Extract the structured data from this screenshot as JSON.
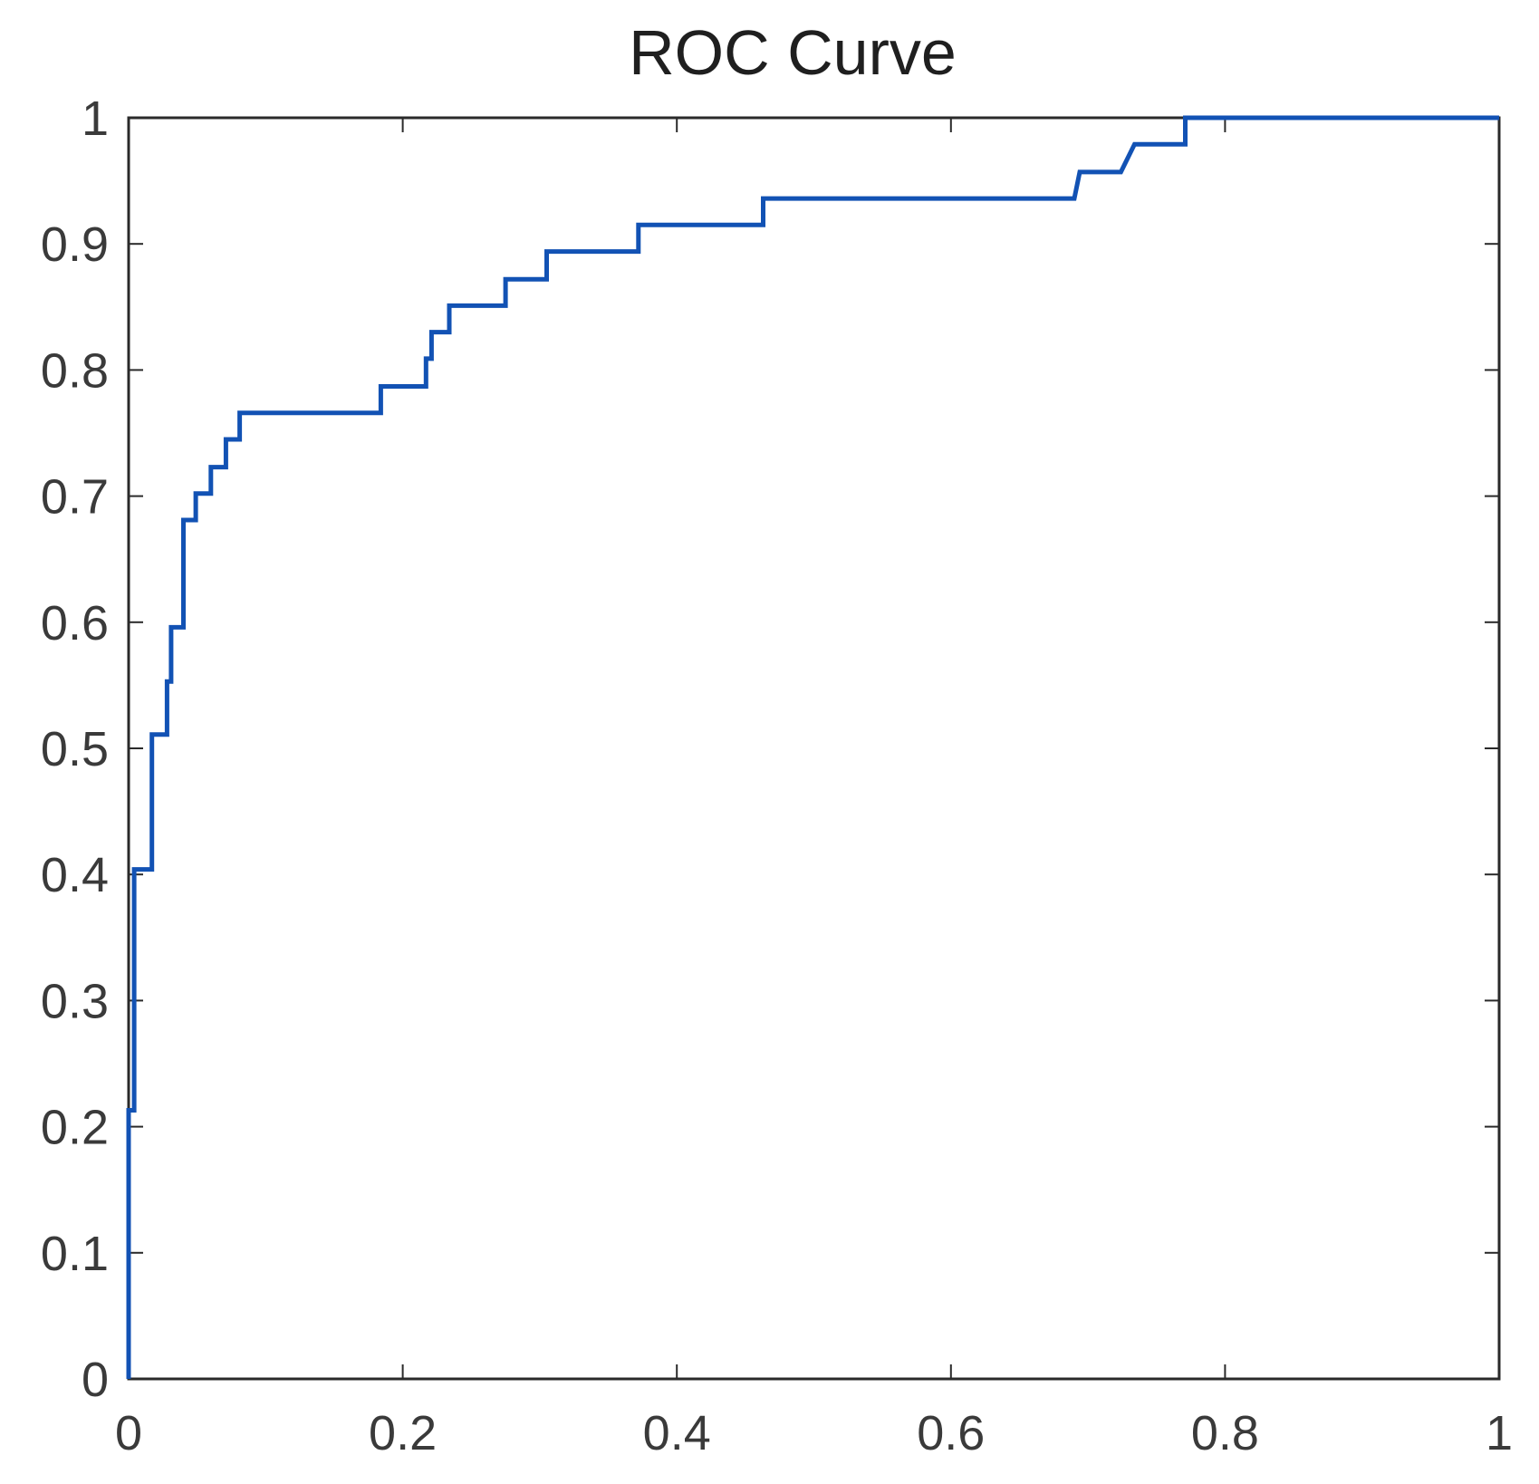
{
  "chart_data": {
    "type": "line",
    "subtype": "roc-step-curve",
    "title": "ROC Curve",
    "xlabel": "",
    "ylabel": "",
    "xlim": [
      0,
      1
    ],
    "ylim": [
      0,
      1
    ],
    "grid": false,
    "legend": null,
    "box": true,
    "tick_direction": "in",
    "x_ticks": [
      {
        "label": "0",
        "value": 0
      },
      {
        "label": "0.2",
        "value": 0.2
      },
      {
        "label": "0.4",
        "value": 0.4
      },
      {
        "label": "0.6",
        "value": 0.6
      },
      {
        "label": "0.8",
        "value": 0.8
      },
      {
        "label": "1",
        "value": 1
      }
    ],
    "y_ticks": [
      {
        "label": "0",
        "value": 0
      },
      {
        "label": "0.1",
        "value": 0.1
      },
      {
        "label": "0.2",
        "value": 0.2
      },
      {
        "label": "0.3",
        "value": 0.3
      },
      {
        "label": "0.4",
        "value": 0.4
      },
      {
        "label": "0.5",
        "value": 0.5
      },
      {
        "label": "0.6",
        "value": 0.6
      },
      {
        "label": "0.7",
        "value": 0.7
      },
      {
        "label": "0.8",
        "value": 0.8
      },
      {
        "label": "0.9",
        "value": 0.9
      },
      {
        "label": "1",
        "value": 1
      }
    ],
    "series": [
      {
        "name": "ROC curve",
        "color": "#1252b4",
        "line_width": 5,
        "points_fpr_tpr": [
          [
            0.0,
            0.0
          ],
          [
            0.0,
            0.213
          ],
          [
            0.004,
            0.213
          ],
          [
            0.004,
            0.404
          ],
          [
            0.017,
            0.404
          ],
          [
            0.017,
            0.511
          ],
          [
            0.028,
            0.511
          ],
          [
            0.028,
            0.553
          ],
          [
            0.031,
            0.553
          ],
          [
            0.031,
            0.596
          ],
          [
            0.04,
            0.596
          ],
          [
            0.04,
            0.681
          ],
          [
            0.049,
            0.681
          ],
          [
            0.049,
            0.702
          ],
          [
            0.06,
            0.702
          ],
          [
            0.06,
            0.723
          ],
          [
            0.071,
            0.723
          ],
          [
            0.071,
            0.745
          ],
          [
            0.081,
            0.745
          ],
          [
            0.081,
            0.766
          ],
          [
            0.184,
            0.766
          ],
          [
            0.184,
            0.787
          ],
          [
            0.217,
            0.787
          ],
          [
            0.217,
            0.809
          ],
          [
            0.221,
            0.809
          ],
          [
            0.221,
            0.83
          ],
          [
            0.234,
            0.83
          ],
          [
            0.234,
            0.851
          ],
          [
            0.275,
            0.851
          ],
          [
            0.275,
            0.872
          ],
          [
            0.305,
            0.872
          ],
          [
            0.305,
            0.894
          ],
          [
            0.372,
            0.894
          ],
          [
            0.372,
            0.915
          ],
          [
            0.463,
            0.915
          ],
          [
            0.463,
            0.936
          ],
          [
            0.69,
            0.936
          ],
          [
            0.694,
            0.957
          ],
          [
            0.724,
            0.957
          ],
          [
            0.734,
            0.979
          ],
          [
            0.771,
            0.979
          ],
          [
            0.771,
            1.0
          ],
          [
            1.0,
            1.0
          ]
        ]
      }
    ],
    "colors": {
      "line": "#1252b4",
      "axis": "#2a2a2a",
      "tick": "#2a2a2a",
      "tick_text": "#3a3a3a",
      "title_text": "#1f1f1f",
      "background": "#ffffff"
    }
  }
}
